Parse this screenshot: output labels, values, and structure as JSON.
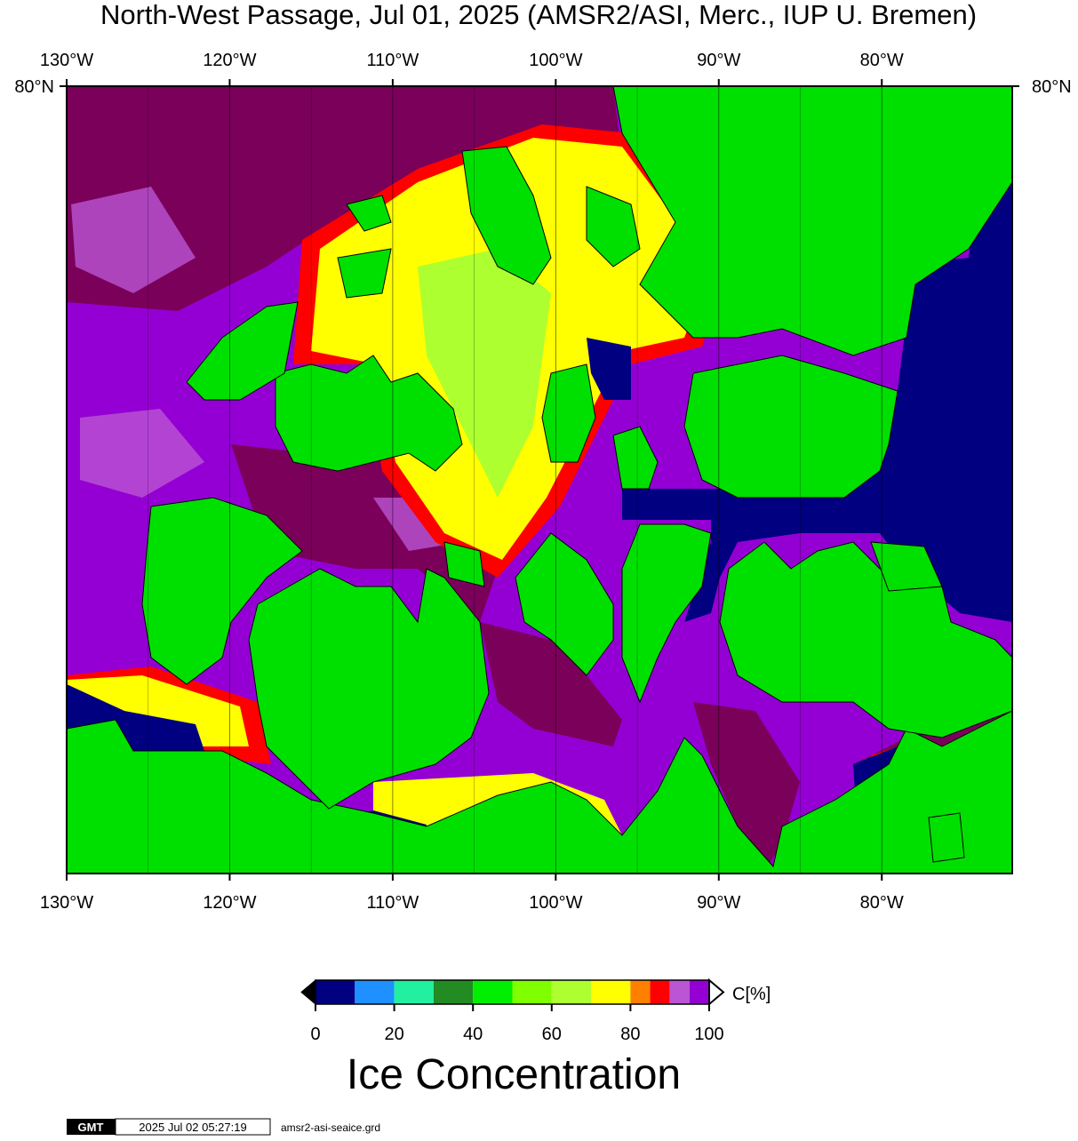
{
  "title": "North-West Passage, Jul 01, 2025 (AMSR2/ASI, Merc., IUP U. Bremen)",
  "map": {
    "xlim": [
      -130,
      -72
    ],
    "lon_ticks": [
      {
        "value": -130,
        "label": "130°W"
      },
      {
        "value": -120,
        "label": "120°W"
      },
      {
        "value": -110,
        "label": "110°W"
      },
      {
        "value": -100,
        "label": "100°W"
      },
      {
        "value": -90,
        "label": "90°W"
      },
      {
        "value": -80,
        "label": "80°W"
      }
    ],
    "lat_ticks": [
      {
        "value": 80,
        "label": "80°N"
      }
    ]
  },
  "colorbar": {
    "range": [
      0,
      100
    ],
    "bounds": [
      0,
      10,
      20,
      30,
      40,
      50,
      60,
      70,
      80,
      85,
      90,
      95,
      100
    ],
    "colors": [
      "#000080",
      "#1e90ff",
      "#20f0a0",
      "#228b22",
      "#00ee00",
      "#7fff00",
      "#adff2f",
      "#ffff00",
      "#ff7f00",
      "#ff0000",
      "#ba55d3",
      "#9400d3"
    ],
    "under_color": "#000000",
    "over_color": "#ffffff",
    "ticks": [
      0,
      20,
      40,
      60,
      80,
      100
    ],
    "unit": "C[%]",
    "title": "Ice Concentration"
  },
  "footer": {
    "logo": "GMT",
    "timestamp": "2025 Jul 02 05:27:19",
    "file": "amsr2-asi-seaice.grd"
  }
}
